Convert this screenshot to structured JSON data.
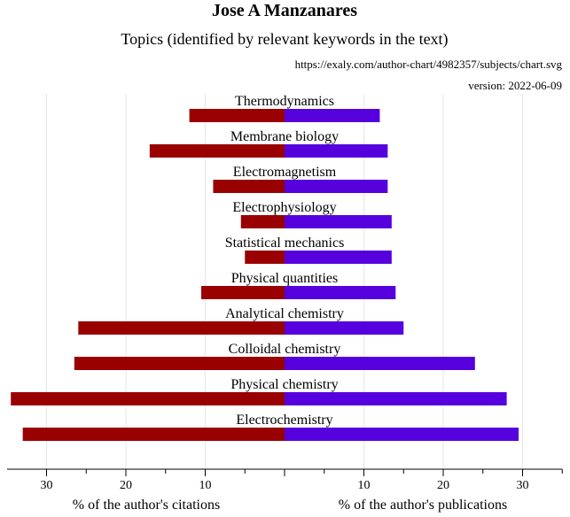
{
  "title": "Jose A Manzanares",
  "subtitle": "Topics (identified by relevant keywords in the text)",
  "source_url": "https://exaly.com/author-chart/4982357/subjects/chart.svg",
  "version": "version: 2022-06-09",
  "colors": {
    "citations": "#990000",
    "publications": "#5500dd",
    "grid": "#e6e6e6",
    "axis": "#000000"
  },
  "chart_data": {
    "type": "bar",
    "orientation": "horizontal-diverging",
    "categories": [
      "Thermodynamics",
      "Membrane biology",
      "Electromagnetism",
      "Electrophysiology",
      "Statistical mechanics",
      "Physical quantities",
      "Analytical chemistry",
      "Colloidal chemistry",
      "Physical chemistry",
      "Electrochemistry"
    ],
    "series": [
      {
        "values": [
          12,
          17,
          9,
          5.5,
          5,
          10.5,
          26,
          26.5,
          34.5,
          33
        ]
      },
      {
        "values": [
          12,
          13,
          13,
          13.5,
          13.5,
          14,
          15,
          24,
          28,
          29.5
        ]
      }
    ],
    "left_xlabel": "% of the author's citations",
    "right_xlabel": "% of the author's publications",
    "left_ticks": [
      "30",
      "20",
      "10"
    ],
    "right_ticks": [
      "10",
      "20",
      "30"
    ],
    "xlim": [
      0,
      35
    ],
    "grid": true
  }
}
